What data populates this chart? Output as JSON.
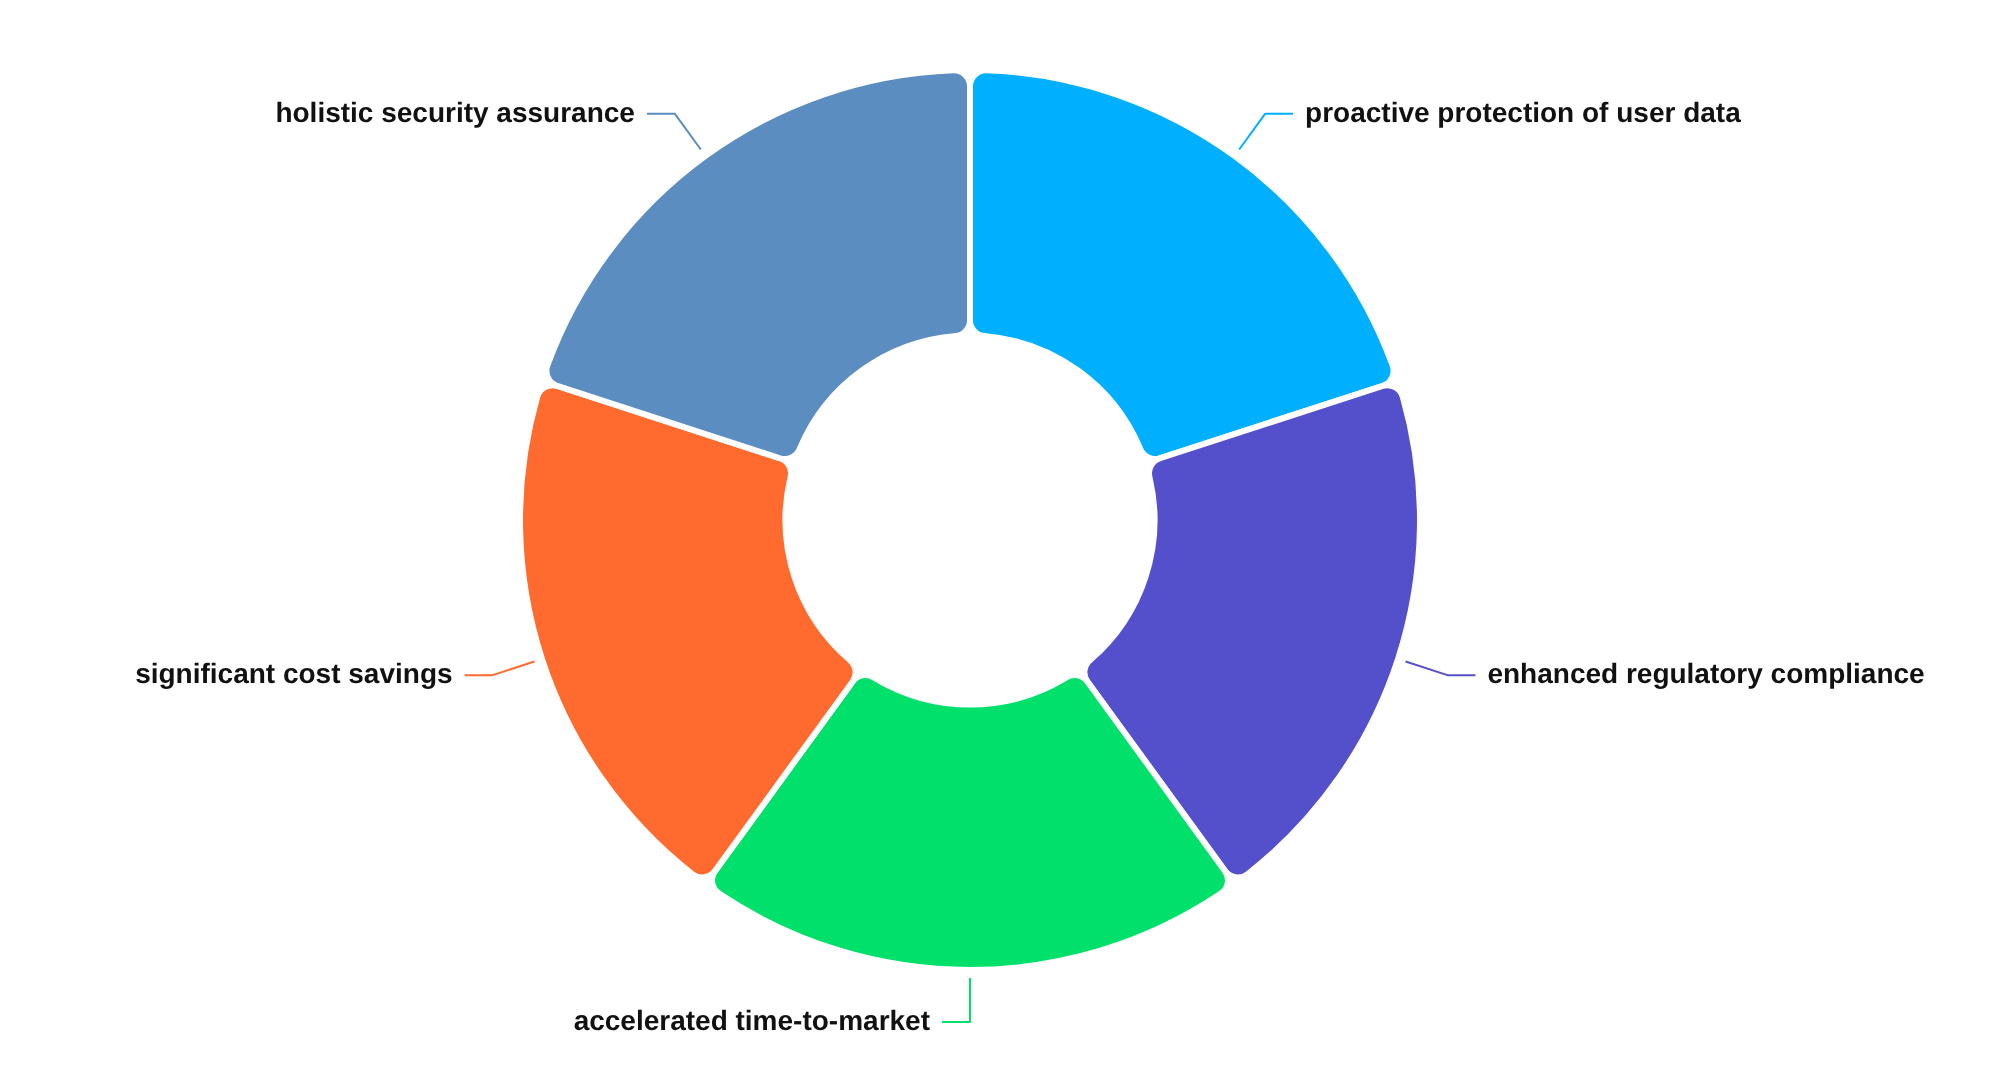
{
  "chart_data": {
    "type": "donut",
    "categories": [
      "proactive protection of user data",
      "enhanced regulatory compliance",
      "accelerated time-to-market",
      "significant cost savings",
      "holistic security assurance"
    ],
    "values": [
      20,
      20,
      20,
      20,
      20
    ],
    "colors": [
      "#00b0ff",
      "#5450cc",
      "#00e06a",
      "#ff6b2e",
      "#5b8dc1"
    ],
    "legend": false
  }
}
